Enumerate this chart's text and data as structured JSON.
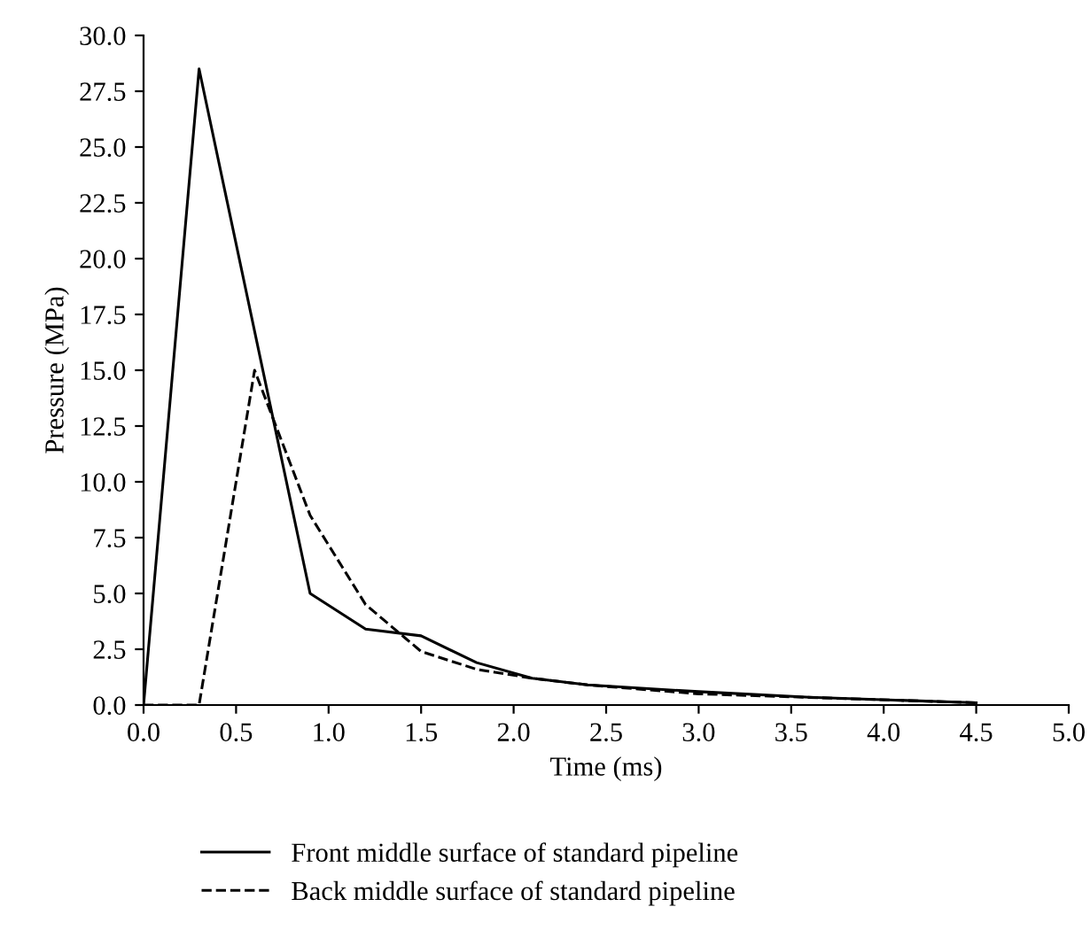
{
  "chart_data": {
    "type": "line",
    "xlabel": "Time (ms)",
    "ylabel": "Pressure (MPa)",
    "xlim": [
      0,
      5
    ],
    "xticks": [
      {
        "value": 0,
        "label": "0.0"
      },
      {
        "value": 0.5,
        "label": "0.5"
      },
      {
        "value": 1,
        "label": "1.0"
      },
      {
        "value": 1.5,
        "label": "1.5"
      },
      {
        "value": 2,
        "label": "2.0"
      },
      {
        "value": 2.5,
        "label": "2.5"
      },
      {
        "value": 3,
        "label": "3.0"
      },
      {
        "value": 3.5,
        "label": "3.5"
      },
      {
        "value": 4,
        "label": "4.0"
      },
      {
        "value": 4.5,
        "label": "4.5"
      },
      {
        "value": 5,
        "label": "5.0"
      }
    ],
    "ylim": [
      0,
      30
    ],
    "yticks": [
      {
        "value": 0,
        "label": "0.0"
      },
      {
        "value": 2.5,
        "label": "2.5"
      },
      {
        "value": 5,
        "label": "5.0"
      },
      {
        "value": 7.5,
        "label": "7.5"
      },
      {
        "value": 10,
        "label": "10.0"
      },
      {
        "value": 12.5,
        "label": "12.5"
      },
      {
        "value": 15,
        "label": "15.0"
      },
      {
        "value": 17.5,
        "label": "17.5"
      },
      {
        "value": 20,
        "label": "20.0"
      },
      {
        "value": 22.5,
        "label": "22.5"
      },
      {
        "value": 25,
        "label": "25.0"
      },
      {
        "value": 27.5,
        "label": "27.5"
      },
      {
        "value": 30,
        "label": "30.0"
      }
    ],
    "grid": false,
    "legend": "bottom",
    "marker": "none",
    "series": [
      {
        "name": "Front middle surface of standard pipeline",
        "color": "#000000",
        "line_style": "solid",
        "x": [
          0,
          0.3,
          0.9,
          1.2,
          1.5,
          1.8,
          2.1,
          2.4,
          3.0,
          3.6,
          4.5
        ],
        "values": [
          0,
          28.5,
          5.0,
          3.4,
          3.1,
          1.9,
          1.2,
          0.9,
          0.6,
          0.35,
          0.1
        ]
      },
      {
        "name": "Back middle surface of standard pipeline",
        "color": "#000000",
        "line_style": "dashed",
        "x": [
          0,
          0.3,
          0.6,
          0.9,
          1.2,
          1.5,
          1.8,
          2.1,
          2.4,
          3.0,
          4.5
        ],
        "values": [
          0,
          0,
          15.0,
          8.5,
          4.5,
          2.4,
          1.6,
          1.2,
          0.9,
          0.5,
          0.1
        ]
      }
    ]
  }
}
